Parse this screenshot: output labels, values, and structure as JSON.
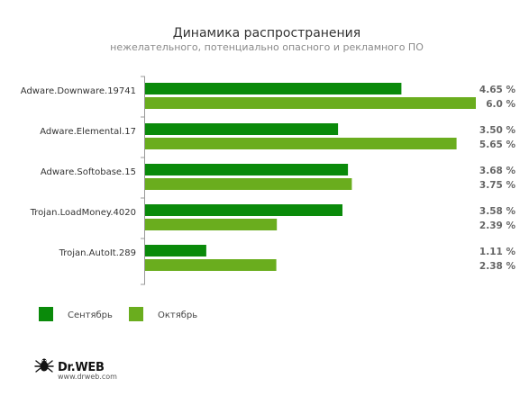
{
  "chart_data": {
    "type": "bar",
    "orientation": "horizontal",
    "title": "Динамика распространения",
    "subtitle": "нежелательного, потенциально опасного и рекламного ПО",
    "categories": [
      "Adware.Downware.19741",
      "Adware.Elemental.17",
      "Adware.Softobase.15",
      "Trojan.LoadMoney.4020",
      "Trojan.AutoIt.289"
    ],
    "series": [
      {
        "name": "Сентябрь",
        "color": "#0a8a0a",
        "values": [
          4.65,
          3.5,
          3.68,
          3.58,
          1.11
        ],
        "labels": [
          "4.65 %",
          "3.50 %",
          "3.68 %",
          "3.58 %",
          "1.11 %"
        ]
      },
      {
        "name": "Октябрь",
        "color": "#6aad1e",
        "values": [
          6.0,
          5.65,
          3.75,
          2.39,
          2.38
        ],
        "labels": [
          "6.0 %",
          "5.65 %",
          "3.75 %",
          "2.39 %",
          "2.38 %"
        ]
      }
    ],
    "xlim": [
      0,
      6
    ],
    "grid": false,
    "legend_position": "bottom-left"
  },
  "brand": {
    "name": "Dr.WEB",
    "url": "www.drweb.com",
    "logo_icon": "spider-icon"
  }
}
